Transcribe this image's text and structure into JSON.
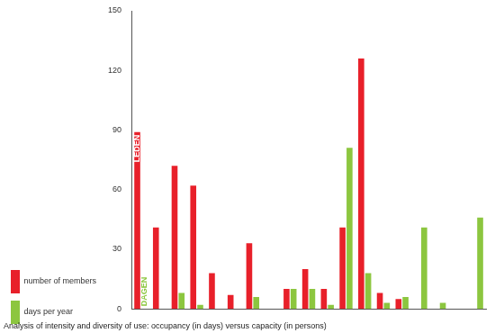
{
  "chart_data": {
    "type": "bar",
    "title": "Analysis of intensity and diversity of use: occupancy (in days) versus capacity (in persons)",
    "categories": [
      null,
      null,
      null,
      null,
      null,
      null,
      null,
      null,
      null,
      null,
      null,
      null,
      null,
      null,
      null,
      null,
      null,
      null,
      null
    ],
    "series": [
      {
        "name": "number of members",
        "color": "#e8202a",
        "values": [
          89,
          41,
          72,
          62,
          18,
          7,
          33,
          0,
          10,
          20,
          10,
          41,
          126,
          8,
          5,
          0,
          0,
          0,
          0
        ]
      },
      {
        "name": "days per year",
        "color": "#8cc63f",
        "values": [
          0,
          0,
          8,
          2,
          0,
          0,
          6,
          0,
          10,
          10,
          2,
          81,
          18,
          3,
          6,
          41,
          3,
          0,
          46
        ]
      }
    ],
    "annotations": [
      {
        "text": "LEDEN",
        "series": "number of members",
        "category_index": 0
      },
      {
        "text": "DAGEN",
        "series": "days per year",
        "category_index": 0
      }
    ],
    "ylim": [
      0,
      150
    ],
    "yticks": [
      0,
      30,
      60,
      90,
      120,
      150
    ],
    "grid": false,
    "legend": "left",
    "tick_labels": "y"
  }
}
